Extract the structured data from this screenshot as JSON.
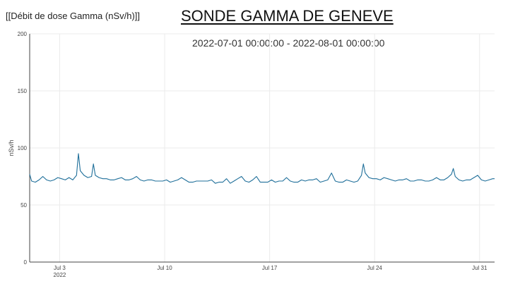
{
  "header": {
    "label": "[[Débit de dose Gamma (nSv/h)]]",
    "title": "SONDE GAMMA DE GENEVE",
    "range": "2022-07-01 00:00:00 - 2022-08-01 00:00:00"
  },
  "colors": {
    "line": "#1f6f9a",
    "grid": "#ebebeb",
    "axis": "#444444"
  },
  "chart_data": {
    "type": "line",
    "title": "",
    "xlabel": "",
    "ylabel": "nSv/h",
    "xlim": [
      "2022-07-01T00:00",
      "2022-08-01T00:00"
    ],
    "ylim": [
      0,
      200
    ],
    "yticks": [
      0,
      50,
      100,
      150,
      200
    ],
    "xticks": [
      {
        "x": "2022-07-03",
        "label": "Jul 3",
        "sublabel": "2022"
      },
      {
        "x": "2022-07-10",
        "label": "Jul 10",
        "sublabel": ""
      },
      {
        "x": "2022-07-17",
        "label": "Jul 17",
        "sublabel": ""
      },
      {
        "x": "2022-07-24",
        "label": "Jul 24",
        "sublabel": ""
      },
      {
        "x": "2022-07-31",
        "label": "Jul 31",
        "sublabel": ""
      }
    ],
    "grid": true,
    "series": [
      {
        "name": "",
        "points": [
          [
            "2022-07-01T00:00",
            77
          ],
          [
            "2022-07-01T03:00",
            71
          ],
          [
            "2022-07-01T09:00",
            70
          ],
          [
            "2022-07-01T15:00",
            72
          ],
          [
            "2022-07-01T21:00",
            75
          ],
          [
            "2022-07-02T03:00",
            72
          ],
          [
            "2022-07-02T09:00",
            71
          ],
          [
            "2022-07-02T15:00",
            72
          ],
          [
            "2022-07-02T21:00",
            74
          ],
          [
            "2022-07-03T03:00",
            73
          ],
          [
            "2022-07-03T09:00",
            72
          ],
          [
            "2022-07-03T15:00",
            74
          ],
          [
            "2022-07-03T21:00",
            72
          ],
          [
            "2022-07-04T03:00",
            76
          ],
          [
            "2022-07-04T06:00",
            95
          ],
          [
            "2022-07-04T09:00",
            80
          ],
          [
            "2022-07-04T15:00",
            76
          ],
          [
            "2022-07-04T21:00",
            74
          ],
          [
            "2022-07-05T03:00",
            75
          ],
          [
            "2022-07-05T06:00",
            86
          ],
          [
            "2022-07-05T09:00",
            76
          ],
          [
            "2022-07-05T15:00",
            74
          ],
          [
            "2022-07-05T21:00",
            73
          ],
          [
            "2022-07-06T03:00",
            73
          ],
          [
            "2022-07-06T09:00",
            72
          ],
          [
            "2022-07-06T15:00",
            72
          ],
          [
            "2022-07-06T21:00",
            73
          ],
          [
            "2022-07-07T03:00",
            74
          ],
          [
            "2022-07-07T09:00",
            72
          ],
          [
            "2022-07-07T15:00",
            72
          ],
          [
            "2022-07-07T21:00",
            73
          ],
          [
            "2022-07-08T03:00",
            75
          ],
          [
            "2022-07-08T09:00",
            72
          ],
          [
            "2022-07-08T15:00",
            71
          ],
          [
            "2022-07-08T21:00",
            72
          ],
          [
            "2022-07-09T03:00",
            72
          ],
          [
            "2022-07-09T09:00",
            71
          ],
          [
            "2022-07-09T15:00",
            71
          ],
          [
            "2022-07-09T21:00",
            71
          ],
          [
            "2022-07-10T03:00",
            72
          ],
          [
            "2022-07-10T09:00",
            70
          ],
          [
            "2022-07-10T15:00",
            71
          ],
          [
            "2022-07-10T21:00",
            72
          ],
          [
            "2022-07-11T03:00",
            74
          ],
          [
            "2022-07-11T09:00",
            72
          ],
          [
            "2022-07-11T15:00",
            70
          ],
          [
            "2022-07-11T21:00",
            70
          ],
          [
            "2022-07-12T03:00",
            71
          ],
          [
            "2022-07-12T09:00",
            71
          ],
          [
            "2022-07-12T15:00",
            71
          ],
          [
            "2022-07-12T21:00",
            71
          ],
          [
            "2022-07-13T03:00",
            72
          ],
          [
            "2022-07-13T09:00",
            69
          ],
          [
            "2022-07-13T15:00",
            70
          ],
          [
            "2022-07-13T21:00",
            70
          ],
          [
            "2022-07-14T03:00",
            73
          ],
          [
            "2022-07-14T09:00",
            69
          ],
          [
            "2022-07-14T15:00",
            71
          ],
          [
            "2022-07-14T21:00",
            73
          ],
          [
            "2022-07-15T03:00",
            75
          ],
          [
            "2022-07-15T09:00",
            71
          ],
          [
            "2022-07-15T15:00",
            70
          ],
          [
            "2022-07-15T21:00",
            72
          ],
          [
            "2022-07-16T03:00",
            75
          ],
          [
            "2022-07-16T09:00",
            70
          ],
          [
            "2022-07-16T15:00",
            70
          ],
          [
            "2022-07-16T21:00",
            70
          ],
          [
            "2022-07-17T03:00",
            72
          ],
          [
            "2022-07-17T09:00",
            70
          ],
          [
            "2022-07-17T15:00",
            71
          ],
          [
            "2022-07-17T21:00",
            71
          ],
          [
            "2022-07-18T03:00",
            74
          ],
          [
            "2022-07-18T09:00",
            71
          ],
          [
            "2022-07-18T15:00",
            70
          ],
          [
            "2022-07-18T21:00",
            70
          ],
          [
            "2022-07-19T03:00",
            72
          ],
          [
            "2022-07-19T09:00",
            71
          ],
          [
            "2022-07-19T15:00",
            72
          ],
          [
            "2022-07-19T21:00",
            72
          ],
          [
            "2022-07-20T03:00",
            73
          ],
          [
            "2022-07-20T09:00",
            70
          ],
          [
            "2022-07-20T15:00",
            71
          ],
          [
            "2022-07-20T21:00",
            72
          ],
          [
            "2022-07-21T03:00",
            78
          ],
          [
            "2022-07-21T09:00",
            71
          ],
          [
            "2022-07-21T15:00",
            70
          ],
          [
            "2022-07-21T21:00",
            70
          ],
          [
            "2022-07-22T03:00",
            72
          ],
          [
            "2022-07-22T09:00",
            71
          ],
          [
            "2022-07-22T15:00",
            70
          ],
          [
            "2022-07-22T21:00",
            71
          ],
          [
            "2022-07-23T03:00",
            76
          ],
          [
            "2022-07-23T06:00",
            86
          ],
          [
            "2022-07-23T09:00",
            78
          ],
          [
            "2022-07-23T15:00",
            74
          ],
          [
            "2022-07-23T21:00",
            73
          ],
          [
            "2022-07-24T03:00",
            73
          ],
          [
            "2022-07-24T09:00",
            72
          ],
          [
            "2022-07-24T15:00",
            74
          ],
          [
            "2022-07-24T21:00",
            73
          ],
          [
            "2022-07-25T03:00",
            72
          ],
          [
            "2022-07-25T09:00",
            71
          ],
          [
            "2022-07-25T15:00",
            72
          ],
          [
            "2022-07-25T21:00",
            72
          ],
          [
            "2022-07-26T03:00",
            73
          ],
          [
            "2022-07-26T09:00",
            71
          ],
          [
            "2022-07-26T15:00",
            71
          ],
          [
            "2022-07-26T21:00",
            72
          ],
          [
            "2022-07-27T03:00",
            72
          ],
          [
            "2022-07-27T09:00",
            71
          ],
          [
            "2022-07-27T15:00",
            71
          ],
          [
            "2022-07-27T21:00",
            72
          ],
          [
            "2022-07-28T03:00",
            74
          ],
          [
            "2022-07-28T09:00",
            72
          ],
          [
            "2022-07-28T15:00",
            72
          ],
          [
            "2022-07-28T21:00",
            74
          ],
          [
            "2022-07-29T03:00",
            77
          ],
          [
            "2022-07-29T06:00",
            82
          ],
          [
            "2022-07-29T09:00",
            75
          ],
          [
            "2022-07-29T15:00",
            72
          ],
          [
            "2022-07-29T21:00",
            71
          ],
          [
            "2022-07-30T03:00",
            72
          ],
          [
            "2022-07-30T09:00",
            72
          ],
          [
            "2022-07-30T15:00",
            74
          ],
          [
            "2022-07-30T21:00",
            76
          ],
          [
            "2022-07-31T03:00",
            72
          ],
          [
            "2022-07-31T09:00",
            71
          ],
          [
            "2022-07-31T15:00",
            72
          ],
          [
            "2022-07-31T21:00",
            73
          ],
          [
            "2022-08-01T00:00",
            73
          ]
        ]
      }
    ]
  }
}
